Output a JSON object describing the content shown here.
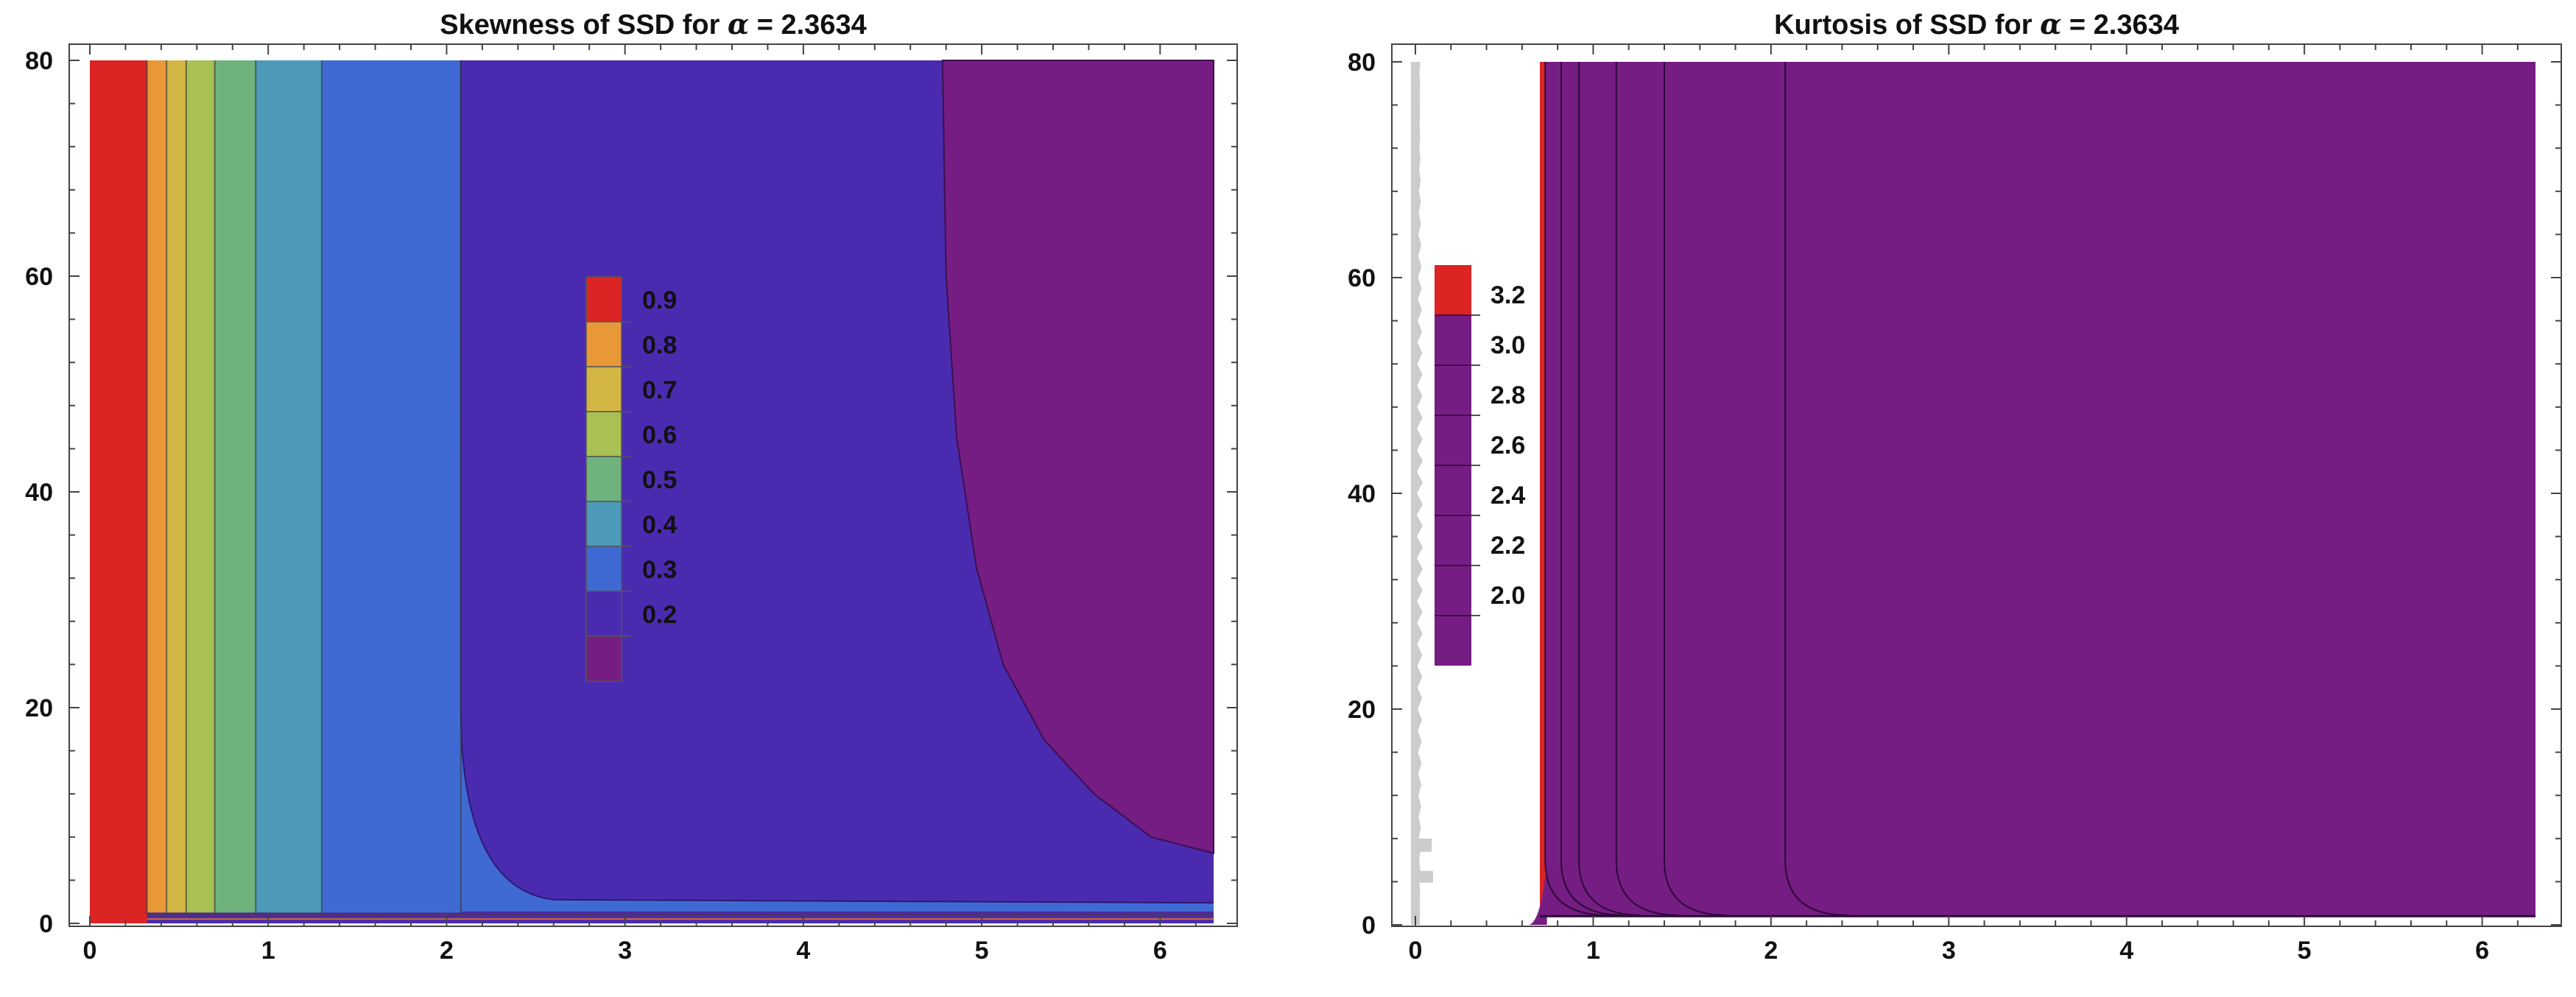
{
  "chart_data": [
    {
      "type": "heatmap",
      "subtype": "filled-contour",
      "title_prefix": "Skewness of SSD for ",
      "title_symbol": "α",
      "title_suffix": " = 2.3634",
      "xlim": [
        0,
        6.3
      ],
      "ylim": [
        0,
        80
      ],
      "xticks": [
        0,
        1,
        2,
        3,
        4,
        5,
        6
      ],
      "yticks": [
        0,
        20,
        40,
        60,
        80
      ],
      "bands": [
        {
          "x0": 0.0,
          "x1": 0.32,
          "color": "#dc2424"
        },
        {
          "x0": 0.32,
          "x1": 0.43,
          "color": "#e99837"
        },
        {
          "x0": 0.43,
          "x1": 0.54,
          "color": "#d4b645"
        },
        {
          "x0": 0.54,
          "x1": 0.7,
          "color": "#a8c152"
        },
        {
          "x0": 0.7,
          "x1": 0.93,
          "color": "#6fb27e"
        },
        {
          "x0": 0.93,
          "x1": 1.3,
          "color": "#4d9ab8"
        },
        {
          "x0": 1.3,
          "x1": 2.08,
          "color": "#3f6ad4"
        },
        {
          "x0": 2.08,
          "x1": 6.3,
          "color": "#4a2bb0"
        }
      ],
      "top_region": {
        "color": "#761d84",
        "boundary": [
          [
            4.78,
            80
          ],
          [
            4.8,
            60
          ],
          [
            4.86,
            45
          ],
          [
            4.97,
            33
          ],
          [
            5.12,
            24
          ],
          [
            5.35,
            17
          ],
          [
            5.63,
            12
          ],
          [
            5.95,
            8
          ],
          [
            6.3,
            6.5
          ]
        ]
      },
      "low_strip": {
        "color": "#4a2bb0",
        "y_top": 1.0
      },
      "legend": {
        "position": "center",
        "colors": [
          "#dc2424",
          "#e99837",
          "#d4b645",
          "#a8c152",
          "#6fb27e",
          "#4d9ab8",
          "#3f6ad4",
          "#4a2bb0",
          "#761d84"
        ],
        "labels": [
          "0.9",
          "0.8",
          "0.7",
          "0.6",
          "0.5",
          "0.4",
          "0.3",
          "0.2"
        ]
      }
    },
    {
      "type": "heatmap",
      "subtype": "filled-contour",
      "title_prefix": "Kurtosis of SSD for ",
      "title_symbol": "α",
      "title_suffix": " = 2.3634",
      "xlim": [
        0,
        6.3
      ],
      "ylim": [
        0,
        80
      ],
      "xticks": [
        0,
        1,
        2,
        3,
        4,
        5,
        6
      ],
      "yticks": [
        0,
        20,
        40,
        60,
        80
      ],
      "empty_region": {
        "x0": 0.0,
        "x1": 0.7,
        "color": "#ffffff"
      },
      "red_edge": {
        "x0": 0.7,
        "x1": 0.73,
        "color": "#dc2424"
      },
      "fill_color": "#761d84",
      "contour_x": [
        0.73,
        0.82,
        0.92,
        1.13,
        1.4,
        2.08
      ],
      "low_strip": {
        "y_top": 0.8
      },
      "legend": {
        "position": "left",
        "colors": [
          "#dc2424",
          "#761d84",
          "#761d84",
          "#761d84",
          "#761d84",
          "#761d84",
          "#761d84",
          "#761d84"
        ],
        "labels": [
          "3.2",
          "3.0",
          "2.8",
          "2.6",
          "2.4",
          "2.2",
          "2.0"
        ]
      }
    }
  ]
}
